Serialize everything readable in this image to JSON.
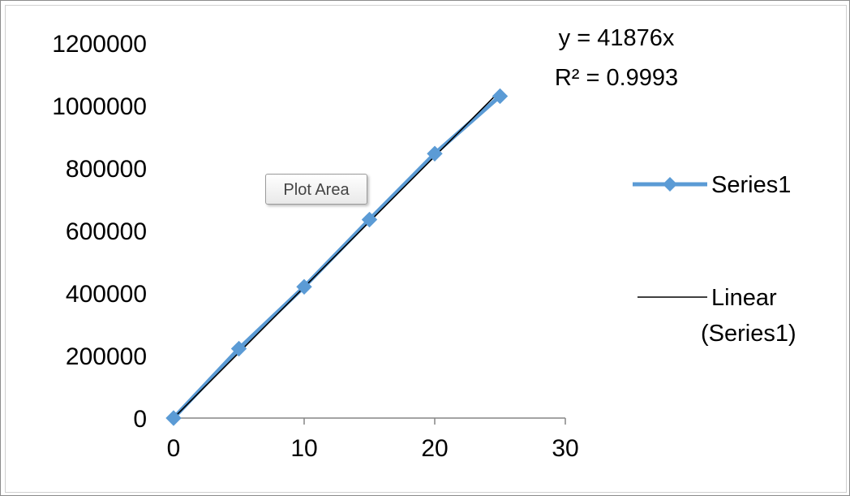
{
  "chart_data": {
    "type": "scatter",
    "x": [
      0,
      5,
      10,
      15,
      20,
      25
    ],
    "series": [
      {
        "name": "Series1",
        "values": [
          0,
          222000,
          420000,
          635000,
          846000,
          1030000
        ],
        "color": "#5b9bd5",
        "marker": "diamond"
      }
    ],
    "trendline": {
      "name": "Linear (Series1)",
      "type": "linear",
      "slope": 41876,
      "intercept": 0,
      "equation": "y = 41876x",
      "r_squared": "R² = 0.9993",
      "color": "#000000"
    },
    "xlim": [
      0,
      30
    ],
    "ylim": [
      0,
      1200000
    ],
    "xticks": [
      "0",
      "10",
      "20",
      "30"
    ],
    "yticks": [
      "0",
      "200000",
      "400000",
      "600000",
      "800000",
      "1000000",
      "1200000"
    ],
    "grid": false,
    "legend": {
      "placement": "right",
      "entries": [
        "Series1",
        "Linear",
        "(Series1)"
      ]
    }
  },
  "tooltip": {
    "text": "Plot Area"
  }
}
